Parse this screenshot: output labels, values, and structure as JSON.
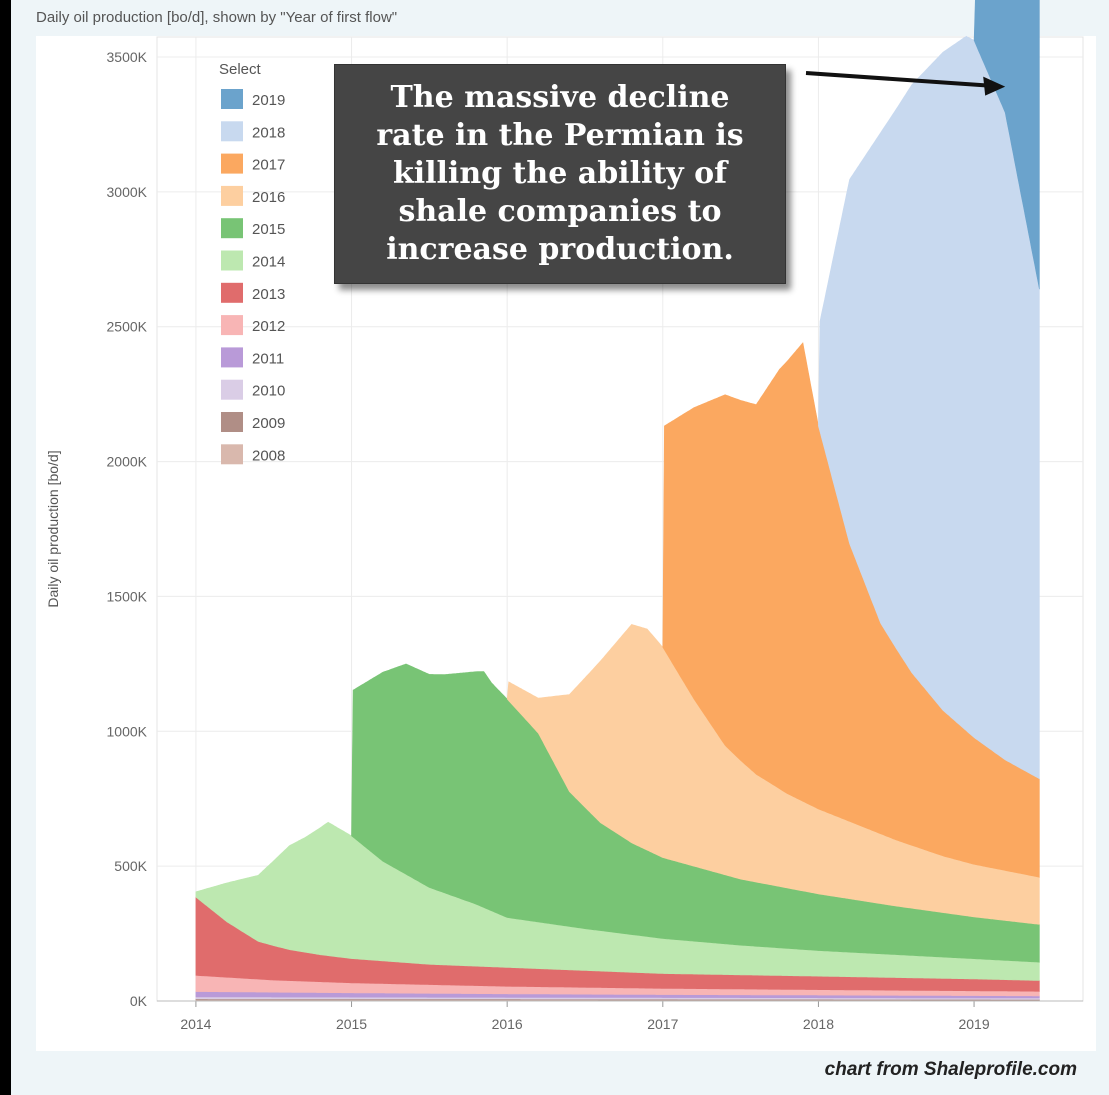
{
  "header": {
    "title": "Daily oil production [bo/d], shown by \"Year of first flow\""
  },
  "annotation": {
    "lines": [
      "The massive decline",
      "rate in the Permian is",
      "killing the ability of",
      "shale companies to",
      "increase production."
    ]
  },
  "credit": "chart from Shaleprofile.com",
  "chart_data": {
    "type": "area",
    "stacked": true,
    "ylabel": "Daily oil production [bo/d]",
    "ylim": [
      0,
      3500
    ],
    "y_ticks": [
      0,
      500,
      1000,
      1500,
      2000,
      2500,
      3000,
      3500
    ],
    "y_tick_labels": [
      "0K",
      "500K",
      "1000K",
      "1500K",
      "2000K",
      "2500K",
      "3000K",
      "3500K"
    ],
    "xlim": [
      2013.75,
      2019.7
    ],
    "x_ticks": [
      2014,
      2015,
      2016,
      2017,
      2018,
      2019
    ],
    "x_tick_labels": [
      "2014",
      "2015",
      "2016",
      "2017",
      "2018",
      "2019"
    ],
    "grid": true,
    "legend": {
      "title": "Select",
      "position": "top-left"
    },
    "annotation_arrow_target": {
      "x": 2019.2,
      "y": 3390
    },
    "series": [
      {
        "name": "2008",
        "color": "#d9b8ad",
        "points": [
          [
            2014.0,
            4
          ],
          [
            2019.42,
            3
          ]
        ]
      },
      {
        "name": "2009",
        "color": "#b08e86",
        "points": [
          [
            2014.0,
            4
          ],
          [
            2019.42,
            3
          ]
        ]
      },
      {
        "name": "2010",
        "color": "#dacde6",
        "points": [
          [
            2014.0,
            7
          ],
          [
            2019.42,
            5
          ]
        ]
      },
      {
        "name": "2011",
        "color": "#b99ad8",
        "points": [
          [
            2014.0,
            20
          ],
          [
            2015.0,
            16
          ],
          [
            2016.0,
            13
          ],
          [
            2017.0,
            11
          ],
          [
            2018.0,
            10
          ],
          [
            2019.42,
            8
          ]
        ]
      },
      {
        "name": "2012",
        "color": "#f8b5b5",
        "points": [
          [
            2014.0,
            60
          ],
          [
            2014.5,
            45
          ],
          [
            2015.0,
            37
          ],
          [
            2016.0,
            28
          ],
          [
            2017.0,
            23
          ],
          [
            2018.0,
            20
          ],
          [
            2019.42,
            17
          ]
        ]
      },
      {
        "name": "2013",
        "color": "#e06c6c",
        "points": [
          [
            2014.0,
            290
          ],
          [
            2014.2,
            205
          ],
          [
            2014.4,
            140
          ],
          [
            2014.6,
            115
          ],
          [
            2014.8,
            100
          ],
          [
            2015.0,
            90
          ],
          [
            2015.5,
            75
          ],
          [
            2016.0,
            70
          ],
          [
            2017.0,
            55
          ],
          [
            2018.0,
            50
          ],
          [
            2019.0,
            44
          ],
          [
            2019.42,
            40
          ]
        ]
      },
      {
        "name": "2014",
        "color": "#bde8b0",
        "points": [
          [
            2014.0,
            20
          ],
          [
            2014.2,
            145
          ],
          [
            2014.4,
            245
          ],
          [
            2014.6,
            385
          ],
          [
            2014.7,
            425
          ],
          [
            2014.85,
            495
          ],
          [
            2015.0,
            455
          ],
          [
            2015.2,
            370
          ],
          [
            2015.5,
            285
          ],
          [
            2015.8,
            230
          ],
          [
            2016.0,
            185
          ],
          [
            2016.5,
            155
          ],
          [
            2017.0,
            130
          ],
          [
            2017.5,
            110
          ],
          [
            2018.0,
            95
          ],
          [
            2018.5,
            85
          ],
          [
            2019.0,
            75
          ],
          [
            2019.42,
            68
          ]
        ]
      },
      {
        "name": "2015",
        "color": "#78c475",
        "points": [
          [
            2015.0,
            0
          ],
          [
            2015.01,
            545
          ],
          [
            2015.2,
            700
          ],
          [
            2015.35,
            780
          ],
          [
            2015.5,
            790
          ],
          [
            2015.6,
            810
          ],
          [
            2015.85,
            875
          ],
          [
            2015.9,
            845
          ],
          [
            2016.0,
            810
          ],
          [
            2016.2,
            700
          ],
          [
            2016.4,
            500
          ],
          [
            2016.6,
            400
          ],
          [
            2016.8,
            340
          ],
          [
            2017.0,
            300
          ],
          [
            2017.5,
            245
          ],
          [
            2018.0,
            210
          ],
          [
            2018.5,
            180
          ],
          [
            2019.0,
            155
          ],
          [
            2019.42,
            140
          ]
        ]
      },
      {
        "name": "2016",
        "color": "#fdcfa0",
        "points": [
          [
            2016.0,
            0
          ],
          [
            2016.01,
            70
          ],
          [
            2016.2,
            130
          ],
          [
            2016.4,
            360
          ],
          [
            2016.6,
            600
          ],
          [
            2016.8,
            810
          ],
          [
            2016.9,
            820
          ],
          [
            2017.0,
            780
          ],
          [
            2017.2,
            620
          ],
          [
            2017.4,
            480
          ],
          [
            2017.6,
            400
          ],
          [
            2017.8,
            350
          ],
          [
            2018.0,
            315
          ],
          [
            2018.5,
            245
          ],
          [
            2018.8,
            210
          ],
          [
            2019.0,
            195
          ],
          [
            2019.42,
            175
          ]
        ]
      },
      {
        "name": "2017",
        "color": "#fba860",
        "points": [
          [
            2017.0,
            0
          ],
          [
            2017.01,
            830
          ],
          [
            2017.2,
            1080
          ],
          [
            2017.4,
            1300
          ],
          [
            2017.6,
            1370
          ],
          [
            2017.75,
            1555
          ],
          [
            2017.9,
            1700
          ],
          [
            2018.0,
            1420
          ],
          [
            2018.2,
            1030
          ],
          [
            2018.4,
            780
          ],
          [
            2018.6,
            640
          ],
          [
            2018.8,
            540
          ],
          [
            2019.0,
            470
          ],
          [
            2019.2,
            410
          ],
          [
            2019.42,
            365
          ]
        ]
      },
      {
        "name": "2018",
        "color": "#c8d9ef",
        "points": [
          [
            2018.0,
            0
          ],
          [
            2018.01,
            410
          ],
          [
            2018.2,
            1350
          ],
          [
            2018.4,
            1820
          ],
          [
            2018.6,
            2180
          ],
          [
            2018.8,
            2440
          ],
          [
            2018.95,
            2575
          ],
          [
            2019.0,
            2585
          ],
          [
            2019.2,
            2400
          ],
          [
            2019.42,
            1815
          ]
        ]
      },
      {
        "name": "2019",
        "color": "#6ba3cc",
        "points": [
          [
            2019.0,
            0
          ],
          [
            2019.01,
            200
          ],
          [
            2019.2,
            780
          ],
          [
            2019.3,
            1220
          ],
          [
            2019.42,
            1200
          ]
        ]
      }
    ]
  }
}
